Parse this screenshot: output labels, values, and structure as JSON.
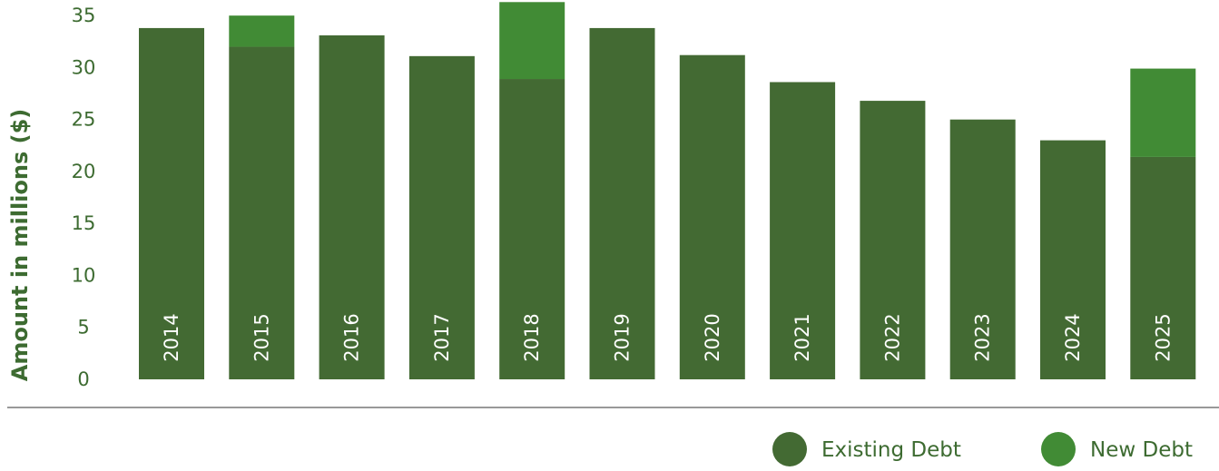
{
  "chart_data": {
    "type": "bar",
    "stacked": true,
    "categories": [
      "2014",
      "2015",
      "2016",
      "2017",
      "2018",
      "2019",
      "2020",
      "2021",
      "2022",
      "2023",
      "2024",
      "2025"
    ],
    "series": [
      {
        "name": "Existing Debt",
        "color": "#436a33",
        "values": [
          33.8,
          32.0,
          33.1,
          31.1,
          28.9,
          33.8,
          31.2,
          28.6,
          26.8,
          25.0,
          23.0,
          21.4
        ]
      },
      {
        "name": "New Debt",
        "color": "#418b35",
        "values": [
          0.0,
          3.0,
          0.0,
          0.0,
          7.4,
          0.0,
          0.0,
          0.0,
          0.0,
          0.0,
          0.0,
          8.5
        ]
      }
    ],
    "ylabel": "Amount in millions ($)",
    "xlabel": "",
    "ylim": [
      0,
      36.5
    ],
    "yticks": [
      "0",
      "5",
      "10",
      "15",
      "20",
      "25",
      "30",
      "35"
    ],
    "grid": false,
    "legend_position": "bottom-right"
  }
}
